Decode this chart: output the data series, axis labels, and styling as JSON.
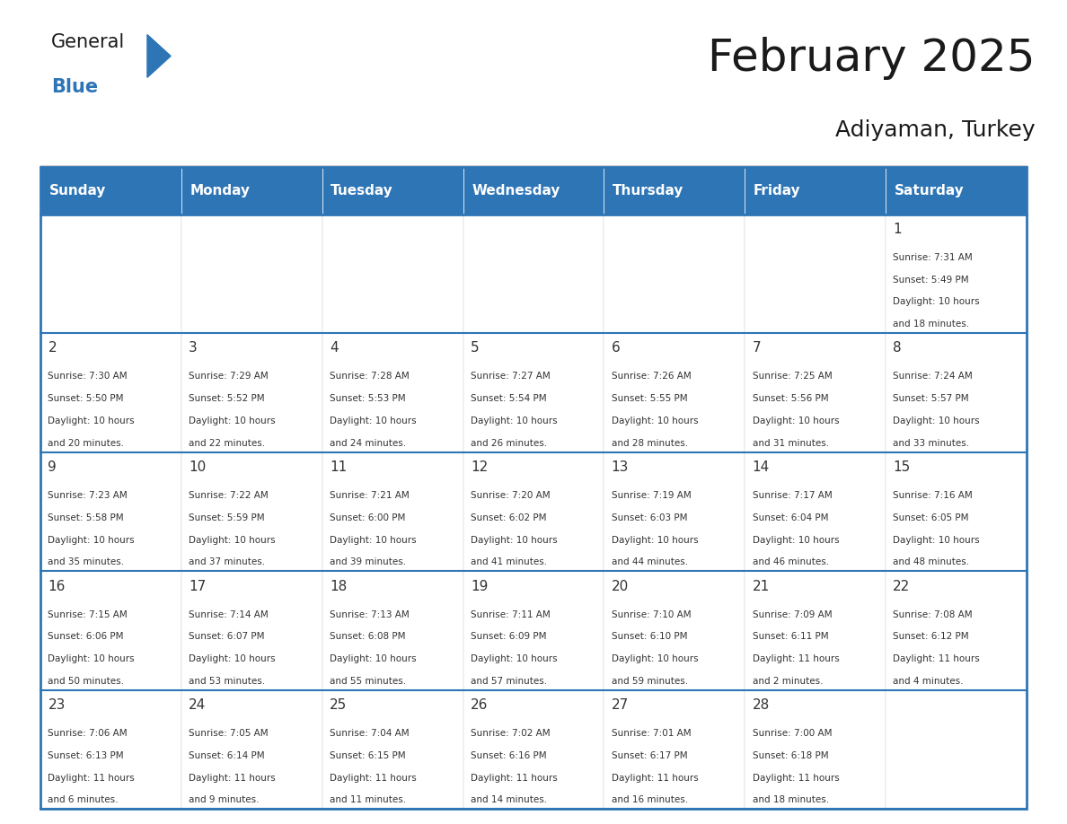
{
  "title": "February 2025",
  "subtitle": "Adiyaman, Turkey",
  "header_color": "#2E75B6",
  "header_text_color": "#FFFFFF",
  "days_of_week": [
    "Sunday",
    "Monday",
    "Tuesday",
    "Wednesday",
    "Thursday",
    "Friday",
    "Saturday"
  ],
  "border_color": "#2E75B6",
  "text_color": "#333333",
  "calendar_data": [
    [
      {
        "day": "",
        "sunrise": "",
        "sunset": "",
        "daylight": ""
      },
      {
        "day": "",
        "sunrise": "",
        "sunset": "",
        "daylight": ""
      },
      {
        "day": "",
        "sunrise": "",
        "sunset": "",
        "daylight": ""
      },
      {
        "day": "",
        "sunrise": "",
        "sunset": "",
        "daylight": ""
      },
      {
        "day": "",
        "sunrise": "",
        "sunset": "",
        "daylight": ""
      },
      {
        "day": "",
        "sunrise": "",
        "sunset": "",
        "daylight": ""
      },
      {
        "day": "1",
        "sunrise": "Sunrise: 7:31 AM",
        "sunset": "Sunset: 5:49 PM",
        "daylight": "Daylight: 10 hours\nand 18 minutes."
      }
    ],
    [
      {
        "day": "2",
        "sunrise": "Sunrise: 7:30 AM",
        "sunset": "Sunset: 5:50 PM",
        "daylight": "Daylight: 10 hours\nand 20 minutes."
      },
      {
        "day": "3",
        "sunrise": "Sunrise: 7:29 AM",
        "sunset": "Sunset: 5:52 PM",
        "daylight": "Daylight: 10 hours\nand 22 minutes."
      },
      {
        "day": "4",
        "sunrise": "Sunrise: 7:28 AM",
        "sunset": "Sunset: 5:53 PM",
        "daylight": "Daylight: 10 hours\nand 24 minutes."
      },
      {
        "day": "5",
        "sunrise": "Sunrise: 7:27 AM",
        "sunset": "Sunset: 5:54 PM",
        "daylight": "Daylight: 10 hours\nand 26 minutes."
      },
      {
        "day": "6",
        "sunrise": "Sunrise: 7:26 AM",
        "sunset": "Sunset: 5:55 PM",
        "daylight": "Daylight: 10 hours\nand 28 minutes."
      },
      {
        "day": "7",
        "sunrise": "Sunrise: 7:25 AM",
        "sunset": "Sunset: 5:56 PM",
        "daylight": "Daylight: 10 hours\nand 31 minutes."
      },
      {
        "day": "8",
        "sunrise": "Sunrise: 7:24 AM",
        "sunset": "Sunset: 5:57 PM",
        "daylight": "Daylight: 10 hours\nand 33 minutes."
      }
    ],
    [
      {
        "day": "9",
        "sunrise": "Sunrise: 7:23 AM",
        "sunset": "Sunset: 5:58 PM",
        "daylight": "Daylight: 10 hours\nand 35 minutes."
      },
      {
        "day": "10",
        "sunrise": "Sunrise: 7:22 AM",
        "sunset": "Sunset: 5:59 PM",
        "daylight": "Daylight: 10 hours\nand 37 minutes."
      },
      {
        "day": "11",
        "sunrise": "Sunrise: 7:21 AM",
        "sunset": "Sunset: 6:00 PM",
        "daylight": "Daylight: 10 hours\nand 39 minutes."
      },
      {
        "day": "12",
        "sunrise": "Sunrise: 7:20 AM",
        "sunset": "Sunset: 6:02 PM",
        "daylight": "Daylight: 10 hours\nand 41 minutes."
      },
      {
        "day": "13",
        "sunrise": "Sunrise: 7:19 AM",
        "sunset": "Sunset: 6:03 PM",
        "daylight": "Daylight: 10 hours\nand 44 minutes."
      },
      {
        "day": "14",
        "sunrise": "Sunrise: 7:17 AM",
        "sunset": "Sunset: 6:04 PM",
        "daylight": "Daylight: 10 hours\nand 46 minutes."
      },
      {
        "day": "15",
        "sunrise": "Sunrise: 7:16 AM",
        "sunset": "Sunset: 6:05 PM",
        "daylight": "Daylight: 10 hours\nand 48 minutes."
      }
    ],
    [
      {
        "day": "16",
        "sunrise": "Sunrise: 7:15 AM",
        "sunset": "Sunset: 6:06 PM",
        "daylight": "Daylight: 10 hours\nand 50 minutes."
      },
      {
        "day": "17",
        "sunrise": "Sunrise: 7:14 AM",
        "sunset": "Sunset: 6:07 PM",
        "daylight": "Daylight: 10 hours\nand 53 minutes."
      },
      {
        "day": "18",
        "sunrise": "Sunrise: 7:13 AM",
        "sunset": "Sunset: 6:08 PM",
        "daylight": "Daylight: 10 hours\nand 55 minutes."
      },
      {
        "day": "19",
        "sunrise": "Sunrise: 7:11 AM",
        "sunset": "Sunset: 6:09 PM",
        "daylight": "Daylight: 10 hours\nand 57 minutes."
      },
      {
        "day": "20",
        "sunrise": "Sunrise: 7:10 AM",
        "sunset": "Sunset: 6:10 PM",
        "daylight": "Daylight: 10 hours\nand 59 minutes."
      },
      {
        "day": "21",
        "sunrise": "Sunrise: 7:09 AM",
        "sunset": "Sunset: 6:11 PM",
        "daylight": "Daylight: 11 hours\nand 2 minutes."
      },
      {
        "day": "22",
        "sunrise": "Sunrise: 7:08 AM",
        "sunset": "Sunset: 6:12 PM",
        "daylight": "Daylight: 11 hours\nand 4 minutes."
      }
    ],
    [
      {
        "day": "23",
        "sunrise": "Sunrise: 7:06 AM",
        "sunset": "Sunset: 6:13 PM",
        "daylight": "Daylight: 11 hours\nand 6 minutes."
      },
      {
        "day": "24",
        "sunrise": "Sunrise: 7:05 AM",
        "sunset": "Sunset: 6:14 PM",
        "daylight": "Daylight: 11 hours\nand 9 minutes."
      },
      {
        "day": "25",
        "sunrise": "Sunrise: 7:04 AM",
        "sunset": "Sunset: 6:15 PM",
        "daylight": "Daylight: 11 hours\nand 11 minutes."
      },
      {
        "day": "26",
        "sunrise": "Sunrise: 7:02 AM",
        "sunset": "Sunset: 6:16 PM",
        "daylight": "Daylight: 11 hours\nand 14 minutes."
      },
      {
        "day": "27",
        "sunrise": "Sunrise: 7:01 AM",
        "sunset": "Sunset: 6:17 PM",
        "daylight": "Daylight: 11 hours\nand 16 minutes."
      },
      {
        "day": "28",
        "sunrise": "Sunrise: 7:00 AM",
        "sunset": "Sunset: 6:18 PM",
        "daylight": "Daylight: 11 hours\nand 18 minutes."
      },
      {
        "day": "",
        "sunrise": "",
        "sunset": "",
        "daylight": ""
      }
    ]
  ]
}
